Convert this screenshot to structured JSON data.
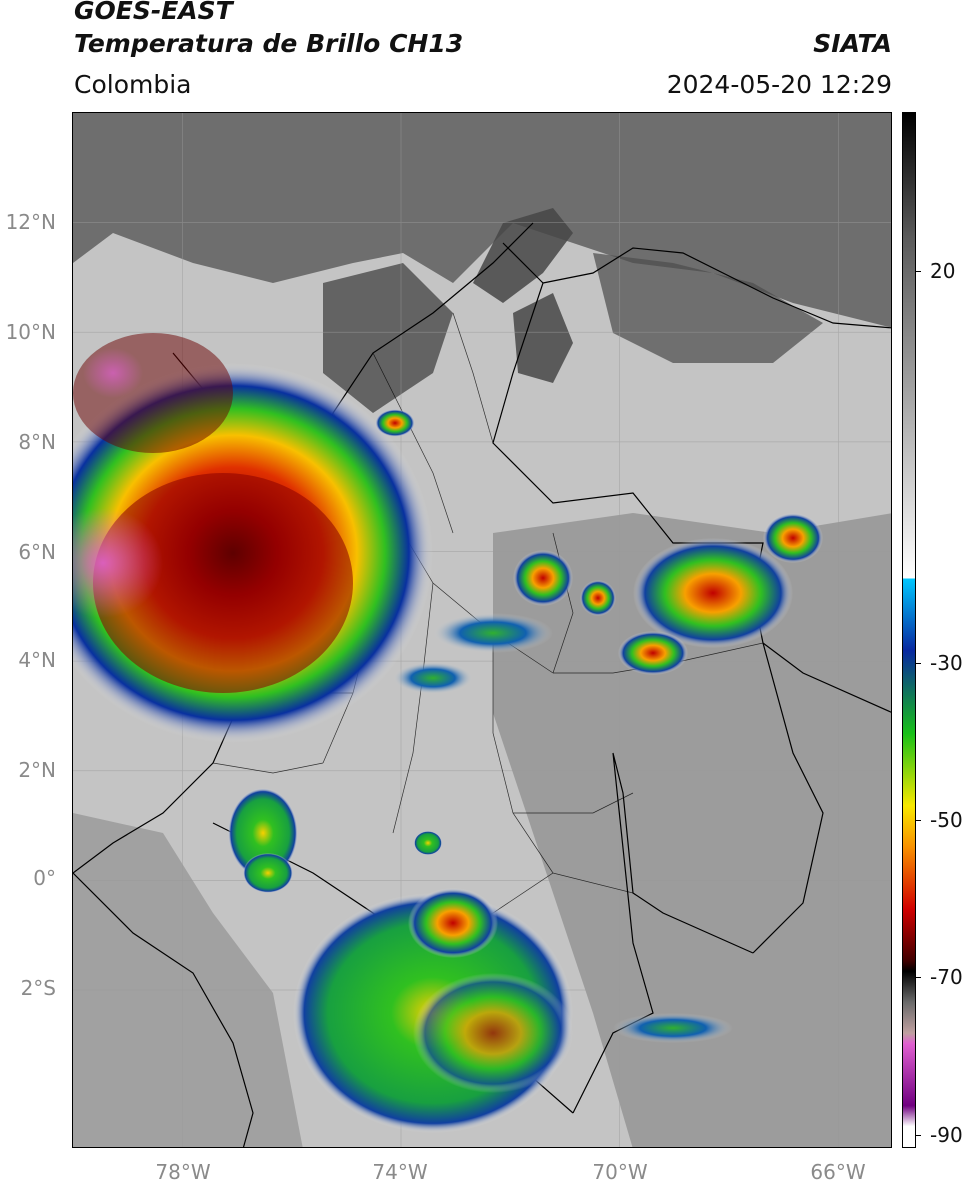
{
  "header": {
    "satellite": "GOES-EAST",
    "product": "Temperatura de Brillo CH13",
    "organization": "SIATA",
    "region": "Colombia",
    "datetime": "2024-05-20 12:29"
  },
  "map": {
    "lat_labels": [
      "12°N",
      "10°N",
      "8°N",
      "6°N",
      "4°N",
      "2°N",
      "0°",
      "2°S"
    ],
    "lat_values": [
      12,
      10,
      8,
      6,
      4,
      2,
      0,
      -2
    ],
    "lon_labels": [
      "78°W",
      "74°W",
      "70°W",
      "66°W"
    ],
    "lon_values": [
      -78,
      -74,
      -70,
      -66
    ],
    "lat_range": [
      -4.9,
      14.0
    ],
    "lon_range": [
      -80.0,
      -65.0
    ],
    "colors": {
      "ocean_base": "#6e6e6e",
      "land_base": "#c8c8c8",
      "cold_cloud_red": "#d01010",
      "cold_cloud_green": "#18c018",
      "gridline": "#9a9a9a"
    }
  },
  "colorbar": {
    "tick_labels": [
      "20",
      "-30",
      "-50",
      "-70",
      "-90"
    ],
    "tick_values": [
      20,
      -30,
      -50,
      -70,
      -90
    ],
    "range": [
      -92,
      40
    ],
    "colors": {
      "warm_top": "#000000",
      "white": "#ffffff",
      "cyan": "#00c8ff",
      "blue": "#0828a0",
      "green": "#18c018",
      "yellow": "#f8e800",
      "orange": "#f89000",
      "red": "#d00000",
      "dark_red": "#400000",
      "pink": "#e060d0",
      "purple": "#700080"
    }
  }
}
